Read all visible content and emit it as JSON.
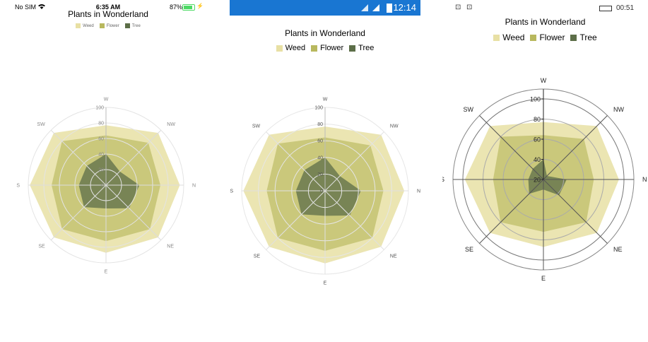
{
  "panels": [
    {
      "id": "ios",
      "status": {
        "carrier": "No SIM",
        "time": "6:35 AM",
        "battery": "87%",
        "battery_level": 0.87
      },
      "legend": [
        "Weed",
        "Flower",
        "Tree"
      ]
    },
    {
      "id": "android",
      "status": {
        "time": "12:14"
      },
      "legend": [
        "Weed",
        "Flower",
        "Tree"
      ]
    },
    {
      "id": "uwp",
      "status": {
        "time": "00:51"
      },
      "legend": [
        "Weed",
        "Flower",
        "Tree"
      ]
    }
  ],
  "colors": {
    "weed": "#e8e0a4",
    "flower": "#b8b85e",
    "tree": "#5c6e48",
    "android_bar": "#1976d2"
  },
  "chart_data": [
    {
      "type": "radar-area",
      "title": "Plants in Wonderland",
      "categories": [
        "N",
        "NE",
        "E",
        "SE",
        "S",
        "SW",
        "W",
        "NW"
      ],
      "rlim": [
        0,
        100
      ],
      "ticks": [
        "0",
        "20",
        "40",
        "60",
        "80",
        "100"
      ],
      "legend_position": "top",
      "series": [
        {
          "name": "Weed",
          "values": [
            95,
            95,
            87,
            95,
            98,
            95,
            77,
            95
          ]
        },
        {
          "name": "Flower",
          "values": [
            70,
            80,
            72,
            80,
            70,
            80,
            64,
            77
          ]
        },
        {
          "name": "Tree",
          "values": [
            43,
            42,
            30,
            40,
            35,
            35,
            40,
            25
          ]
        }
      ]
    },
    {
      "type": "radar-area",
      "title": "Plants in Wonderland",
      "categories": [
        "N",
        "NE",
        "E",
        "SE",
        "S",
        "SW",
        "W",
        "NW"
      ],
      "rlim": [
        0,
        100
      ],
      "ticks": [
        "0",
        "20",
        "40",
        "60",
        "80",
        "100"
      ],
      "legend_position": "top",
      "series": [
        {
          "name": "Weed",
          "values": [
            95,
            95,
            87,
            95,
            98,
            95,
            77,
            95
          ]
        },
        {
          "name": "Flower",
          "values": [
            70,
            80,
            72,
            80,
            70,
            80,
            64,
            77
          ]
        },
        {
          "name": "Tree",
          "values": [
            43,
            42,
            30,
            40,
            35,
            35,
            40,
            25
          ]
        }
      ]
    },
    {
      "type": "polar-area",
      "title": "Plants in Wonderland",
      "categories": [
        "N",
        "NE",
        "E",
        "SE",
        "S",
        "SW",
        "W",
        "NW"
      ],
      "rlim": [
        20,
        100
      ],
      "ticks": [
        "20",
        "40",
        "60",
        "80",
        "100"
      ],
      "legend_position": "top",
      "series": [
        {
          "name": "Weed",
          "values": [
            95,
            95,
            87,
            95,
            98,
            95,
            77,
            95
          ]
        },
        {
          "name": "Flower",
          "values": [
            70,
            80,
            72,
            80,
            70,
            80,
            64,
            77
          ]
        },
        {
          "name": "Tree",
          "values": [
            43,
            42,
            30,
            40,
            35,
            35,
            40,
            25
          ]
        }
      ]
    }
  ]
}
